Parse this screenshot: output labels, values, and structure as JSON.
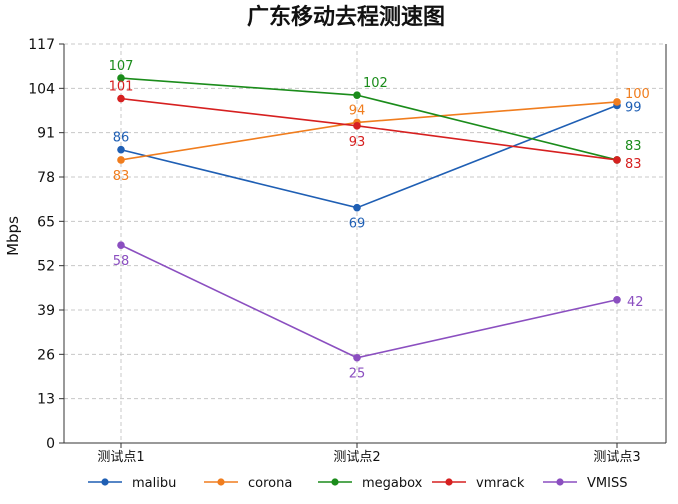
{
  "chart_data": {
    "type": "line",
    "title": "广东移动去程测速图",
    "xlabel": "",
    "ylabel": "Mbps",
    "categories": [
      "测试点1",
      "测试点2",
      "测试点3"
    ],
    "ylim": [
      0,
      117
    ],
    "yticks": [
      0,
      13,
      26,
      39,
      52,
      65,
      78,
      91,
      104,
      117
    ],
    "grid": true,
    "legend_position": "bottom",
    "series": [
      {
        "name": "malibu",
        "color": "#1f5fb4",
        "values": [
          86,
          69,
          99
        ],
        "labels": [
          "86",
          "69",
          "99"
        ]
      },
      {
        "name": "corona",
        "color": "#f07d1e",
        "values": [
          83,
          94,
          100
        ],
        "labels": [
          "83",
          "94",
          "100"
        ]
      },
      {
        "name": "megabox",
        "color": "#1b8c1b",
        "values": [
          107,
          102,
          83
        ],
        "labels": [
          "107",
          "102",
          "83"
        ]
      },
      {
        "name": "vmrack",
        "color": "#d62020",
        "values": [
          101,
          93,
          83
        ],
        "labels": [
          "101",
          "93",
          "83"
        ]
      },
      {
        "name": "VMISS",
        "color": "#8b4fc0",
        "values": [
          58,
          25,
          42
        ],
        "labels": [
          "58",
          "25",
          "42"
        ]
      }
    ]
  }
}
